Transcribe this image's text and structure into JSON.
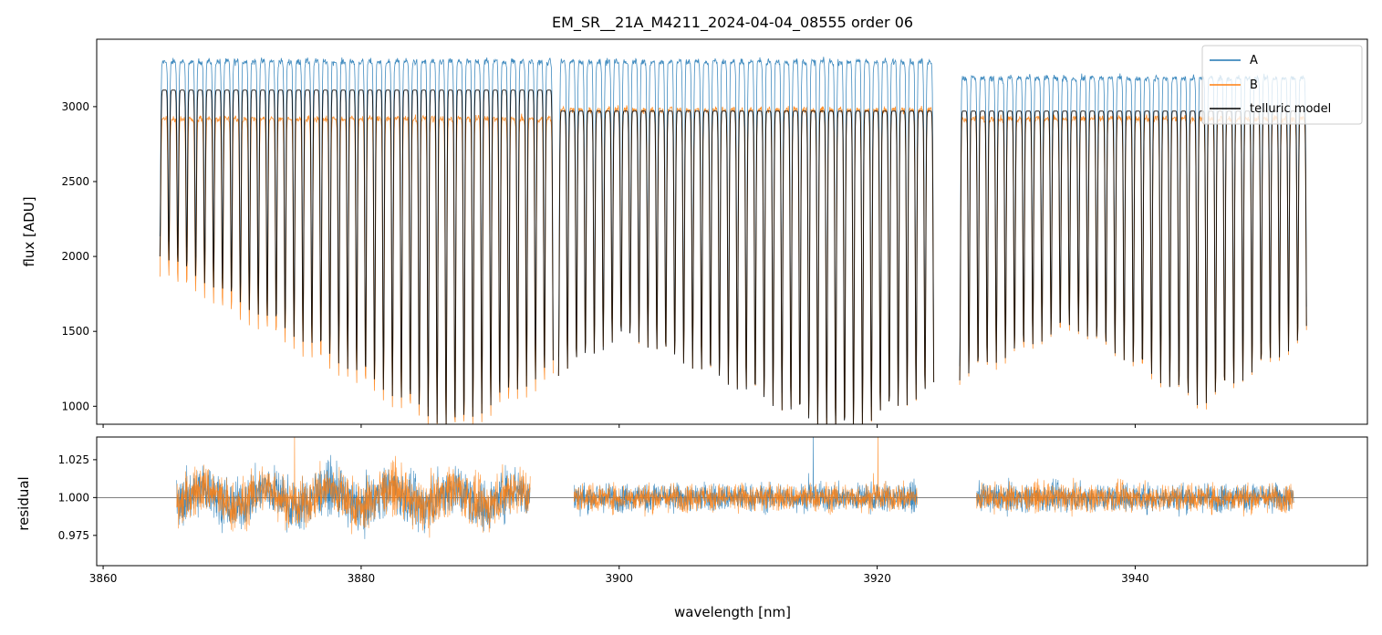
{
  "chart_data": [
    {
      "type": "line",
      "title": "EM_SR__21A_M4211_2024-04-04_08555  order 06",
      "xlabel": "",
      "ylabel": "flux [ADU]",
      "xlim": [
        3859.5,
        3958
      ],
      "ylim": [
        880,
        3450
      ],
      "y_ticks": [
        1000,
        1500,
        2000,
        2500,
        3000
      ],
      "grid": false,
      "legend_position": "top-right",
      "segments_nm": [
        [
          3864.4,
          3894.9
        ],
        [
          3895.3,
          3924.4
        ],
        [
          3926.4,
          3953.3
        ]
      ],
      "absorption_lines": {
        "approx_count": 92,
        "deepest_flux_near_nm": [
          3887,
          3917
        ],
        "shallowest_flux_near_nm": [
          3864.5,
          3898,
          3953
        ]
      },
      "series": [
        {
          "name": "A",
          "color": "#1f77b4",
          "continuum_flux": 3300,
          "line_width": 0.8
        },
        {
          "name": "B",
          "color": "#ff7f0e",
          "continuum_flux": 2920,
          "line_width": 0.8
        },
        {
          "name": "telluric model",
          "color": "#000000",
          "line_width": 1.0
        }
      ]
    },
    {
      "type": "line",
      "title": "",
      "xlabel": "wavelength [nm]",
      "ylabel": "residual",
      "xlim": [
        3859.5,
        3958
      ],
      "ylim": [
        0.955,
        1.04
      ],
      "x_ticks": [
        3860,
        3880,
        3900,
        3920,
        3940
      ],
      "y_ticks": [
        "0.975",
        "1.000",
        "1.025"
      ],
      "reference_line": 1.0,
      "segments_nm": [
        [
          3865.7,
          3893.1
        ],
        [
          3896.5,
          3923.1
        ],
        [
          3927.7,
          3952.3
        ]
      ],
      "series": [
        {
          "name": "A",
          "color": "#1f77b4"
        },
        {
          "name": "B",
          "color": "#ff7f0e"
        }
      ]
    }
  ]
}
